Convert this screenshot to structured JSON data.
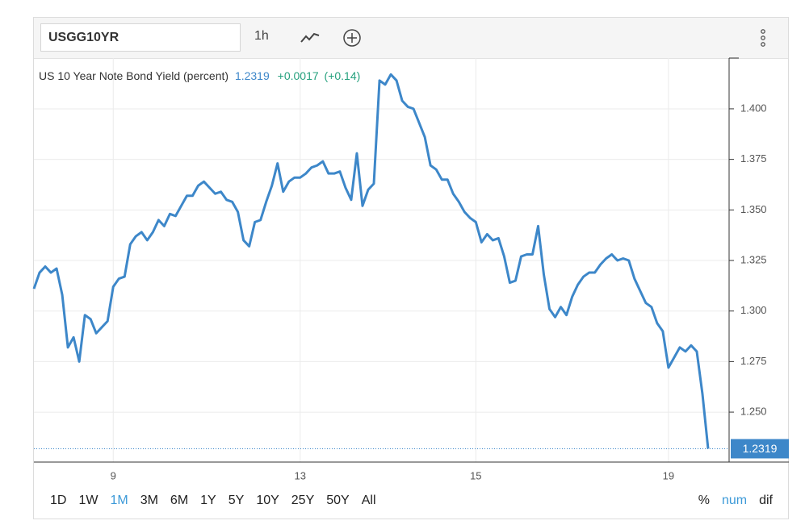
{
  "toolbar": {
    "symbol": "USGG10YR",
    "interval": "1h"
  },
  "chart_data": {
    "type": "line",
    "title": "US 10 Year Note Bond Yield (percent)",
    "last_value": 1.2319,
    "change": "+0.0017",
    "change_pct": "(+0.14)",
    "categories": [
      null,
      null,
      null,
      null,
      null,
      null,
      null,
      null,
      null,
      null,
      null,
      null,
      null,
      null,
      "9",
      null,
      null,
      null,
      null,
      null,
      null,
      null,
      null,
      null,
      null,
      null,
      null,
      null,
      null,
      null,
      null,
      null,
      null,
      null,
      null,
      null,
      null,
      null,
      null,
      null,
      null,
      null,
      null,
      null,
      null,
      null,
      null,
      "13",
      null,
      null,
      null,
      null,
      null,
      null,
      null,
      null,
      null,
      null,
      null,
      null,
      null,
      null,
      null,
      null,
      null,
      null,
      null,
      null,
      null,
      null,
      null,
      null,
      null,
      null,
      null,
      null,
      null,
      null,
      "15",
      null,
      null,
      null,
      null,
      null,
      null,
      null,
      null,
      null,
      null,
      null,
      null,
      null,
      null,
      null,
      null,
      null,
      null,
      null,
      null,
      null,
      null,
      null,
      null,
      null,
      null,
      null,
      null,
      null,
      null,
      null,
      null,
      null,
      "19",
      null,
      null,
      null,
      null,
      null,
      null,
      null
    ],
    "series": [
      {
        "name": "USGG10YR",
        "color": "#3d87c9",
        "values": [
          1.311,
          1.319,
          1.322,
          1.319,
          1.321,
          1.308,
          1.282,
          1.287,
          1.275,
          1.298,
          1.296,
          1.289,
          1.292,
          1.295,
          1.312,
          1.316,
          1.317,
          1.333,
          1.337,
          1.339,
          1.335,
          1.339,
          1.345,
          1.342,
          1.348,
          1.347,
          1.352,
          1.357,
          1.357,
          1.362,
          1.364,
          1.361,
          1.358,
          1.359,
          1.355,
          1.354,
          1.349,
          1.335,
          1.332,
          1.344,
          1.345,
          1.354,
          1.362,
          1.373,
          1.359,
          1.364,
          1.366,
          1.366,
          1.368,
          1.371,
          1.372,
          1.374,
          1.368,
          1.368,
          1.369,
          1.361,
          1.355,
          1.378,
          1.352,
          1.36,
          1.363,
          1.414,
          1.412,
          1.417,
          1.414,
          1.404,
          1.401,
          1.4,
          1.393,
          1.386,
          1.372,
          1.37,
          1.365,
          1.365,
          1.358,
          1.354,
          1.349,
          1.346,
          1.344,
          1.334,
          1.338,
          1.335,
          1.336,
          1.327,
          1.314,
          1.315,
          1.327,
          1.328,
          1.328,
          1.342,
          1.318,
          1.301,
          1.297,
          1.302,
          1.298,
          1.307,
          1.313,
          1.317,
          1.319,
          1.319,
          1.323,
          1.326,
          1.328,
          1.325,
          1.326,
          1.325,
          1.316,
          1.31,
          1.304,
          1.302,
          1.294,
          1.29,
          1.272,
          1.277,
          1.282,
          1.28,
          1.283,
          1.28,
          1.259,
          1.2319
        ]
      }
    ],
    "ylim": [
      1.2253,
      1.4251
    ],
    "yticks": [
      {
        "value": 1.25,
        "label": "1.250"
      },
      {
        "value": 1.275,
        "label": "1.275"
      },
      {
        "value": 1.3,
        "label": "1.300"
      },
      {
        "value": 1.325,
        "label": "1.325"
      },
      {
        "value": 1.35,
        "label": "1.350"
      },
      {
        "value": 1.375,
        "label": "1.375"
      },
      {
        "value": 1.4,
        "label": "1.400"
      }
    ],
    "grid": true
  },
  "range_buttons": [
    "1D",
    "1W",
    "1M",
    "3M",
    "6M",
    "1Y",
    "5Y",
    "10Y",
    "25Y",
    "50Y",
    "All"
  ],
  "active_range_index": 2,
  "scale_buttons": [
    "%",
    "num",
    "dif"
  ],
  "active_scale_index": 1
}
